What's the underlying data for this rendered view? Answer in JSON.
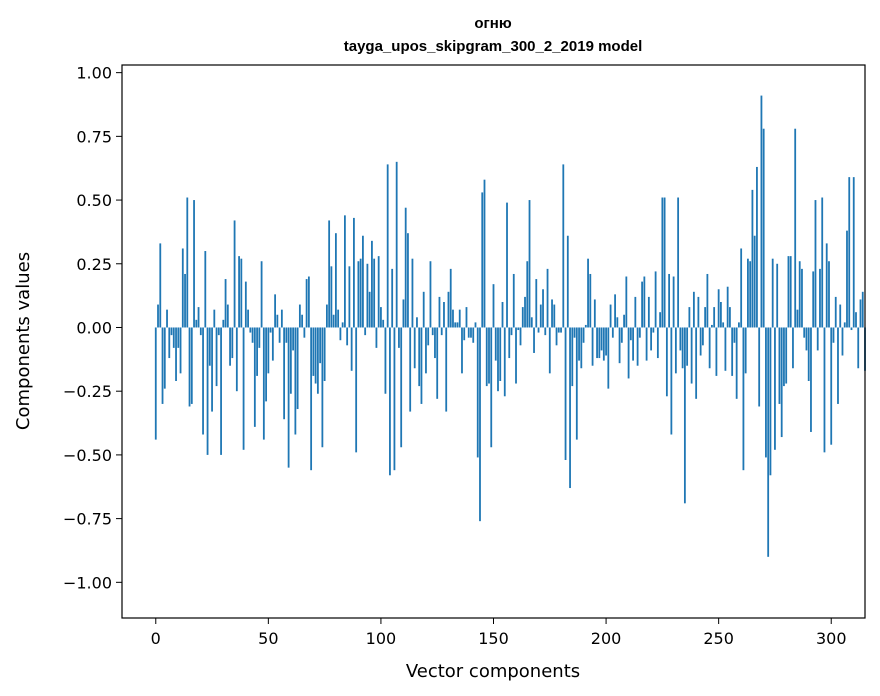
{
  "chart_data": {
    "type": "bar",
    "title": "огню",
    "subtitle": "tayga_upos_skipgram_300_2_2019 model",
    "xlabel": "Vector components",
    "ylabel": "Components values",
    "xlim": [
      -15,
      315
    ],
    "ylim": [
      -1.14,
      1.03
    ],
    "xticks": [
      0,
      50,
      100,
      150,
      200,
      250,
      300
    ],
    "yticks": [
      -1.0,
      -0.75,
      -0.5,
      -0.25,
      0.0,
      0.25,
      0.5,
      0.75,
      1.0
    ],
    "ytick_labels": [
      "−1.00",
      "−0.75",
      "−0.50",
      "−0.25",
      "0.00",
      "0.25",
      "0.50",
      "0.75",
      "1.00"
    ],
    "bar_color": "#1f77b4",
    "grid": false,
    "legend": "none",
    "values": [
      -0.44,
      0.09,
      0.33,
      -0.3,
      -0.24,
      0.07,
      -0.12,
      -0.03,
      -0.08,
      -0.21,
      -0.08,
      -0.18,
      0.31,
      0.21,
      0.51,
      -0.31,
      -0.3,
      0.5,
      0.03,
      0.08,
      -0.03,
      -0.42,
      0.3,
      -0.5,
      -0.15,
      -0.33,
      0.07,
      -0.23,
      -0.03,
      -0.5,
      0.03,
      0.19,
      0.09,
      -0.15,
      -0.12,
      0.42,
      -0.25,
      0.28,
      0.27,
      -0.48,
      0.18,
      0.07,
      -0.02,
      -0.06,
      -0.39,
      -0.19,
      -0.08,
      0.26,
      -0.44,
      -0.29,
      -0.18,
      -0.02,
      -0.13,
      0.13,
      0.05,
      -0.06,
      0.07,
      -0.36,
      -0.06,
      -0.55,
      -0.26,
      -0.09,
      -0.42,
      -0.32,
      0.09,
      0.05,
      -0.04,
      0.19,
      0.2,
      -0.56,
      -0.19,
      -0.22,
      -0.26,
      -0.14,
      -0.47,
      -0.21,
      0.09,
      0.42,
      0.24,
      0.05,
      0.37,
      0.07,
      -0.05,
      0.02,
      0.44,
      -0.07,
      0.24,
      -0.17,
      0.43,
      -0.49,
      0.26,
      0.27,
      0.36,
      -0.03,
      0.25,
      0.14,
      0.34,
      0.27,
      -0.08,
      0.28,
      0.08,
      0.03,
      -0.26,
      0.64,
      -0.58,
      0.23,
      -0.56,
      0.65,
      -0.08,
      -0.47,
      0.11,
      0.47,
      0.37,
      -0.33,
      0.27,
      -0.16,
      0.04,
      -0.23,
      -0.3,
      0.14,
      -0.18,
      -0.07,
      0.26,
      -0.03,
      -0.12,
      -0.28,
      0.12,
      -0.03,
      0.1,
      -0.33,
      0.14,
      0.23,
      0.07,
      0.02,
      0.02,
      0.07,
      -0.18,
      -0.05,
      0.08,
      -0.04,
      -0.04,
      -0.06,
      0.02,
      -0.51,
      -0.76,
      0.53,
      0.58,
      -0.23,
      -0.22,
      -0.47,
      0.17,
      -0.13,
      -0.25,
      -0.21,
      0.1,
      -0.27,
      0.49,
      -0.12,
      -0.03,
      0.21,
      -0.22,
      -0.01,
      -0.07,
      0.08,
      0.12,
      0.26,
      0.5,
      0.04,
      -0.1,
      0.19,
      -0.02,
      0.09,
      0.15,
      -0.03,
      0.23,
      -0.18,
      0.11,
      0.09,
      -0.07,
      -0.02,
      -0.02,
      0.64,
      -0.52,
      0.36,
      -0.63,
      -0.23,
      -0.04,
      -0.44,
      -0.13,
      -0.16,
      -0.06,
      0.01,
      0.27,
      0.21,
      -0.15,
      0.11,
      -0.12,
      -0.12,
      -0.09,
      -0.13,
      -0.11,
      -0.24,
      0.09,
      -0.04,
      0.13,
      0.04,
      -0.14,
      -0.06,
      0.05,
      0.2,
      -0.2,
      -0.05,
      -0.13,
      0.12,
      -0.15,
      -0.04,
      0.18,
      0.2,
      -0.13,
      0.12,
      -0.09,
      -0.02,
      0.22,
      -0.12,
      0.06,
      0.51,
      0.51,
      -0.27,
      0.21,
      -0.42,
      0.2,
      -0.18,
      0.51,
      -0.09,
      -0.16,
      -0.69,
      -0.15,
      0.08,
      -0.22,
      0.14,
      -0.28,
      0.12,
      -0.11,
      -0.07,
      0.08,
      0.21,
      -0.16,
      0.01,
      0.08,
      -0.19,
      0.15,
      0.1,
      0.02,
      -0.17,
      0.16,
      0.08,
      -0.19,
      -0.06,
      -0.28,
      0.02,
      0.31,
      -0.56,
      -0.18,
      0.27,
      0.26,
      0.54,
      0.36,
      0.63,
      -0.31,
      0.91,
      0.78,
      -0.51,
      -0.9,
      -0.58,
      0.27,
      -0.48,
      0.25,
      -0.3,
      -0.43,
      -0.23,
      -0.22,
      0.28,
      0.28,
      -0.16,
      0.78,
      0.07,
      0.26,
      0.23,
      -0.04,
      -0.09,
      -0.21,
      -0.41,
      0.22,
      0.5,
      -0.09,
      0.23,
      0.51,
      -0.49,
      0.33,
      0.26,
      -0.46,
      -0.06,
      0.12,
      -0.3,
      0.09,
      -0.11,
      0.02,
      0.38,
      0.59,
      -0.01,
      0.59,
      0.06,
      -0.16,
      0.11,
      0.14,
      -0.17
    ]
  }
}
